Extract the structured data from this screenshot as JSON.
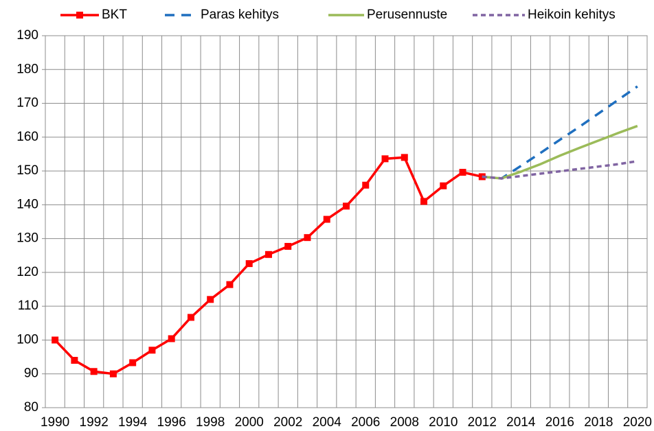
{
  "chart_data": {
    "type": "line",
    "categories": [
      "1990",
      null,
      "1992",
      null,
      "1994",
      null,
      "1996",
      null,
      "1998",
      null,
      "2000",
      null,
      "2002",
      null,
      "2004",
      null,
      "2006",
      null,
      "2008",
      null,
      "2010",
      null,
      "2012",
      null,
      "2014",
      null,
      "2016",
      null,
      "2018",
      null,
      "2020"
    ],
    "series": [
      {
        "name": "BKT",
        "color": "#ff0000",
        "values": [
          100,
          94,
          90.7,
          90,
          93.3,
          97,
          100.4,
          106.7,
          112,
          116.4,
          122.6,
          125.3,
          127.7,
          130.3,
          135.7,
          139.6,
          145.8,
          153.6,
          154,
          141,
          145.6,
          149.6,
          148.3,
          null,
          null,
          null,
          null,
          null,
          null,
          null,
          null
        ]
      },
      {
        "name": "Paras kehitys",
        "color": "#1f6fbf",
        "values": [
          null,
          null,
          null,
          null,
          null,
          null,
          null,
          null,
          null,
          null,
          null,
          null,
          null,
          null,
          null,
          null,
          null,
          null,
          null,
          null,
          null,
          null,
          148.3,
          147.8,
          151.5,
          155.3,
          159.2,
          163,
          167,
          171,
          175
        ]
      },
      {
        "name": "Perusennuste",
        "color": "#9bbb59",
        "values": [
          null,
          null,
          null,
          null,
          null,
          null,
          null,
          null,
          null,
          null,
          null,
          null,
          null,
          null,
          null,
          null,
          null,
          null,
          null,
          null,
          null,
          null,
          148.3,
          147.8,
          149.8,
          152,
          154.5,
          156.8,
          159,
          161.2,
          163.3
        ]
      },
      {
        "name": "Heikoin kehitys",
        "color": "#8064a2",
        "values": [
          null,
          null,
          null,
          null,
          null,
          null,
          null,
          null,
          null,
          null,
          null,
          null,
          null,
          null,
          null,
          null,
          null,
          null,
          null,
          null,
          null,
          null,
          148.3,
          147.8,
          148.5,
          149.2,
          149.9,
          150.6,
          151.3,
          152,
          152.9
        ]
      }
    ],
    "ylim": [
      80,
      190
    ],
    "yticks": [
      80,
      90,
      100,
      110,
      120,
      130,
      140,
      150,
      160,
      170,
      180,
      190
    ],
    "grid": true,
    "legend": "top"
  }
}
